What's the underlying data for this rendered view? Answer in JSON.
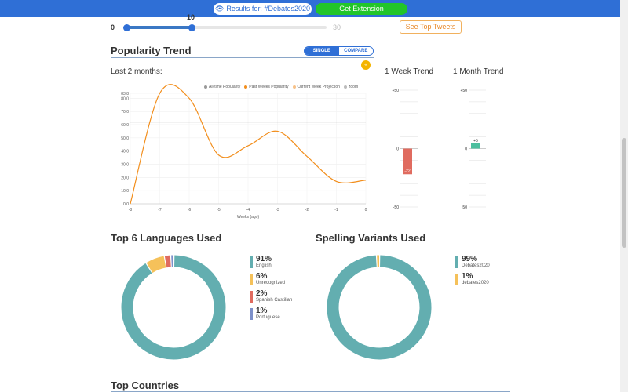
{
  "topbar": {
    "results_label": "Results for: #Debates2020",
    "extension_label": "Get Extension",
    "colors": {
      "bar": "#2f6fd6",
      "extension": "#22c52a"
    }
  },
  "slider": {
    "min_label": "0",
    "max_label": "30",
    "value_label": "10",
    "value": 10,
    "max": 30
  },
  "top_tweets_label": "See Top Tweets",
  "popularity": {
    "title": "Popularity Trend",
    "toggle": {
      "single": "SINGLE",
      "compare": "COMPARE",
      "active": "SINGLE"
    },
    "share_icon": "share-icon",
    "period_label": "Last 2 months:",
    "week_trend_label": "1 Week Trend",
    "month_trend_label": "1 Month Trend",
    "legend": [
      {
        "label": "All-time Popularity",
        "color": "#999999"
      },
      {
        "label": "Past Weeks Popularity",
        "color": "#f28e1c"
      },
      {
        "label": "Current Week Projection",
        "color": "#f7c188"
      },
      {
        "label": "zoom",
        "color": "#bbbbbb"
      }
    ]
  },
  "chart_data": [
    {
      "type": "line",
      "x": [
        -8,
        -7,
        -6,
        -5,
        -4,
        -3,
        -2,
        -1,
        0
      ],
      "series": [
        {
          "name": "Past Weeks Popularity",
          "values": [
            0.0,
            83.8,
            80.0,
            37.0,
            44.0,
            55.0,
            36.0,
            17.0,
            18.0
          ],
          "color": "#f28e1c"
        },
        {
          "name": "All-time Popularity",
          "values": [
            62,
            62,
            62,
            62,
            62,
            62,
            62,
            62,
            62
          ],
          "color": "#999999"
        }
      ],
      "xlabel": "Weeks (ago)",
      "ylabel": "",
      "xlim": [
        -8,
        0
      ],
      "ylim": [
        0,
        83.8
      ],
      "yticks": [
        "0.0",
        "10.0",
        "20.0",
        "30.0",
        "40.0",
        "50.0",
        "60.0",
        "70.0",
        "80.0",
        "83.8"
      ],
      "xticks": [
        "-8",
        "-7",
        "-6",
        "-5",
        "-4",
        "-3",
        "-2",
        "-1",
        "0"
      ],
      "grid": true,
      "legend_position": "top-right"
    },
    {
      "type": "bar",
      "title": "1 Week Trend",
      "categories": [
        ""
      ],
      "values": [
        -22
      ],
      "data_labels": [
        "-22"
      ],
      "ylim": [
        -50,
        50
      ],
      "yticks": [
        "+50",
        "0",
        "-50"
      ],
      "color": "#e06b5f"
    },
    {
      "type": "bar",
      "title": "1 Month Trend",
      "categories": [
        ""
      ],
      "values": [
        5
      ],
      "data_labels": [
        "+5"
      ],
      "ylim": [
        -50,
        50
      ],
      "yticks": [
        "+50",
        "0",
        "-50"
      ],
      "color": "#4dbf9e"
    },
    {
      "type": "pie",
      "title": "Top 6 Languages Used",
      "labels": [
        "English",
        "Unrecognized",
        "Spanish Castilian",
        "Portuguese"
      ],
      "values": [
        91,
        6,
        2,
        1
      ],
      "value_labels": [
        "91%",
        "6%",
        "2%",
        "1%"
      ],
      "colors": [
        "#63aeb0",
        "#f5c15a",
        "#e06b5f",
        "#7c8fc9"
      ]
    },
    {
      "type": "pie",
      "title": "Spelling Variants Used",
      "labels": [
        "Debates2020",
        "debates2020"
      ],
      "values": [
        99,
        1
      ],
      "value_labels": [
        "99%",
        "1%"
      ],
      "colors": [
        "#63aeb0",
        "#f5c15a"
      ]
    }
  ],
  "sections": {
    "languages_title": "Top 6 Languages Used",
    "spelling_title": "Spelling Variants Used",
    "countries_title": "Top Countries"
  }
}
